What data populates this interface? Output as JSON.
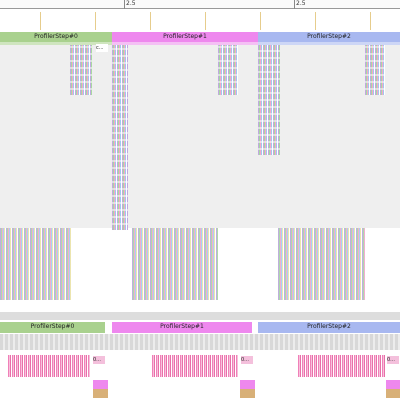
{
  "ruler": {
    "ticks": [
      "2.5",
      "2.5"
    ]
  },
  "top_track": {
    "steps": [
      "ProfilerStep#0",
      "ProfilerStep#1",
      "ProfilerStep#2"
    ],
    "short_labels": [
      "c..."
    ]
  },
  "bottom_track": {
    "steps": [
      "ProfilerStep#0",
      "ProfilerStep#1",
      "ProfilerStep#2"
    ],
    "short_labels": [
      "0...",
      "0...",
      "0..."
    ]
  }
}
